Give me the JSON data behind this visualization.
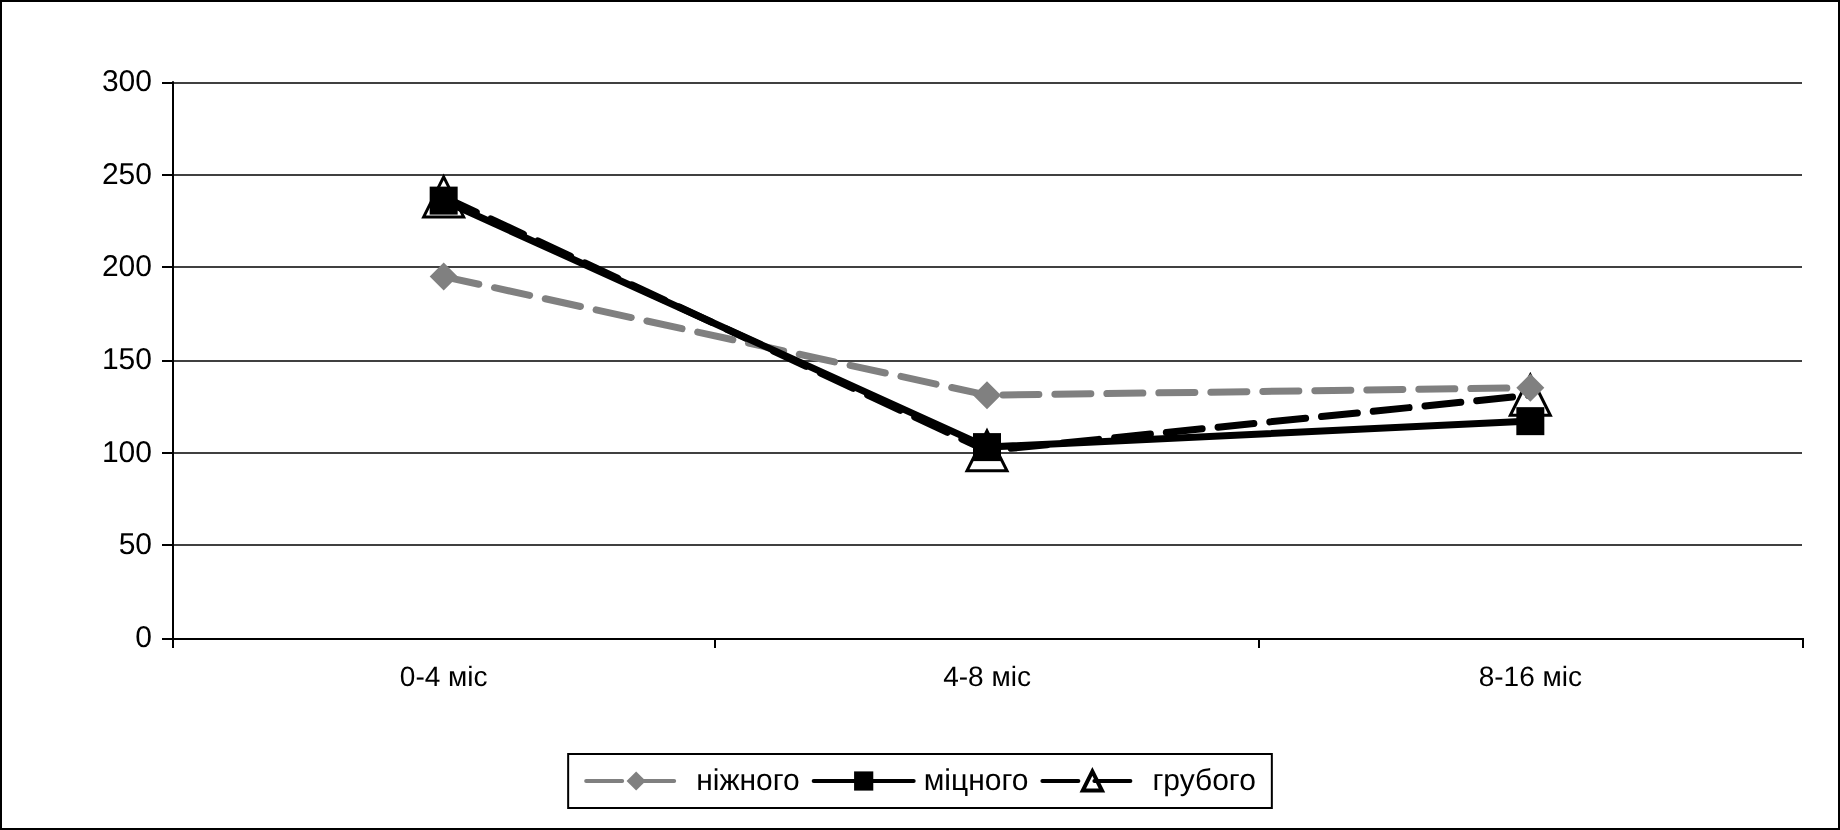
{
  "chart_data": {
    "type": "line",
    "categories": [
      "0-4 міс",
      "4-8 міс",
      "8-16 міс"
    ],
    "series": [
      {
        "name": "ніжного",
        "color": "#808080",
        "values": [
          195,
          131,
          135
        ],
        "marker": "diamond",
        "line_style": "dashed"
      },
      {
        "name": "міцного",
        "color": "#000000",
        "values": [
          236,
          103,
          117
        ],
        "marker": "square",
        "line_style": "solid"
      },
      {
        "name": "грубого",
        "color": "#000000",
        "values": [
          238,
          101,
          131
        ],
        "marker": "triangle",
        "line_style": "dashed"
      }
    ],
    "ylim": [
      0,
      300
    ],
    "yticks": [
      0,
      50,
      100,
      150,
      200,
      250,
      300
    ],
    "grid": "y",
    "legend": "bottom"
  }
}
